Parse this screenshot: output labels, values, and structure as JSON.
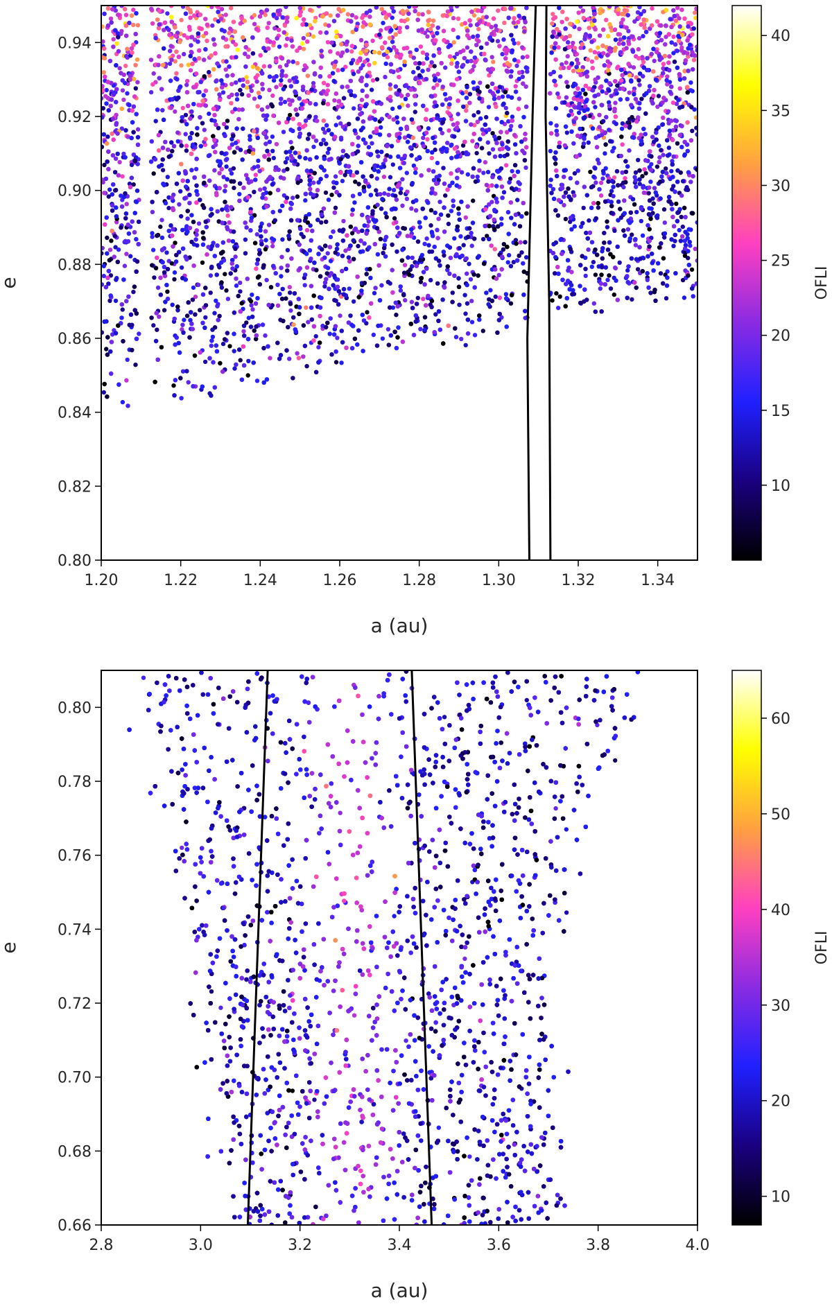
{
  "chart_data": [
    {
      "type": "scatter",
      "xlabel": "a (au)",
      "ylabel": "e",
      "xlim": [
        1.2,
        1.35
      ],
      "ylim": [
        0.8,
        0.95
      ],
      "x_ticks": [
        "1.20",
        "1.22",
        "1.24",
        "1.26",
        "1.28",
        "1.30",
        "1.32",
        "1.34"
      ],
      "y_ticks": [
        "0.80",
        "0.82",
        "0.84",
        "0.86",
        "0.88",
        "0.90",
        "0.92",
        "0.94"
      ],
      "colorbar": {
        "label": "OFLI",
        "range": [
          5,
          42
        ],
        "ticks": [
          "10",
          "15",
          "20",
          "25",
          "30",
          "35",
          "40"
        ],
        "colormap": "plasma-like",
        "stops": [
          "#000000",
          "#1a0080",
          "#2020ff",
          "#8a2be2",
          "#ff40c0",
          "#ffa040",
          "#ffff00",
          "#ffffff"
        ]
      },
      "lines": [
        {
          "points": [
            [
              1.3077,
              0.8
            ],
            [
              1.3072,
              0.86
            ],
            [
              1.3085,
              0.92
            ],
            [
              1.3093,
              0.95
            ]
          ]
        },
        {
          "points": [
            [
              1.313,
              0.8
            ],
            [
              1.3127,
              0.87
            ],
            [
              1.3118,
              0.92
            ],
            [
              1.312,
              0.95
            ]
          ]
        }
      ],
      "distribution": {
        "x_range": [
          1.2,
          1.35
        ],
        "lower_edge": [
          [
            1.2,
            0.84
          ],
          [
            1.21,
            0.842
          ],
          [
            1.23,
            0.844
          ],
          [
            1.26,
            0.852
          ],
          [
            1.29,
            0.857
          ],
          [
            1.31,
            0.864
          ],
          [
            1.33,
            0.868
          ],
          [
            1.35,
            0.87
          ]
        ],
        "gaps": [
          [
            1.2095,
            1.2125
          ],
          [
            1.3072,
            1.3128
          ]
        ],
        "points": 7000,
        "value_mean": 14,
        "value_top_mean": 26
      }
    },
    {
      "type": "scatter",
      "xlabel": "a (au)",
      "ylabel": "e",
      "xlim": [
        2.8,
        4.0
      ],
      "ylim": [
        0.66,
        0.81
      ],
      "x_ticks": [
        "2.8",
        "3.0",
        "3.2",
        "3.4",
        "3.6",
        "3.8",
        "4.0"
      ],
      "y_ticks": [
        "0.66",
        "0.68",
        "0.70",
        "0.72",
        "0.74",
        "0.76",
        "0.78",
        "0.80"
      ],
      "colorbar": {
        "label": "OFLI",
        "range": [
          7,
          65
        ],
        "ticks": [
          "10",
          "20",
          "30",
          "40",
          "50",
          "60"
        ],
        "colormap": "plasma-like",
        "stops": [
          "#000000",
          "#1a0080",
          "#2020ff",
          "#8a2be2",
          "#ff40c0",
          "#ffa040",
          "#ffff00",
          "#ffffff"
        ]
      },
      "lines": [
        {
          "points": [
            [
              3.095,
              0.66
            ],
            [
              3.135,
              0.81
            ]
          ]
        },
        {
          "points": [
            [
              3.465,
              0.66
            ],
            [
              3.425,
              0.81
            ]
          ]
        }
      ],
      "distribution": {
        "envelope": [
          [
            0.66,
            3.08,
            3.72
          ],
          [
            0.7,
            3.02,
            3.7
          ],
          [
            0.74,
            2.98,
            3.72
          ],
          [
            0.78,
            2.93,
            3.8
          ],
          [
            0.81,
            2.88,
            3.9
          ]
        ],
        "points": 9000,
        "value_mean": 20,
        "value_center_mean": 34
      }
    }
  ]
}
